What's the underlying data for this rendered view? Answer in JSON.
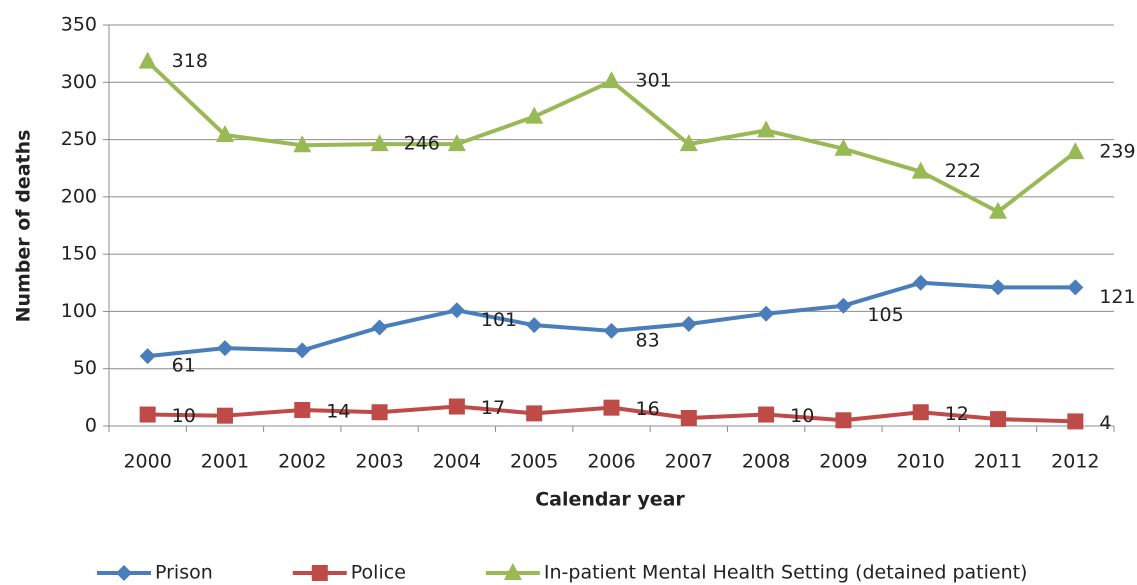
{
  "chart_data": {
    "type": "line",
    "x_label": "Calendar year",
    "y_label": "Number of deaths",
    "categories": [
      "2000",
      "2001",
      "2002",
      "2003",
      "2004",
      "2005",
      "2006",
      "2007",
      "2008",
      "2009",
      "2010",
      "2011",
      "2012"
    ],
    "ylim": [
      0,
      350
    ],
    "yticks": [
      0,
      50,
      100,
      150,
      200,
      250,
      300,
      350
    ],
    "grid": true,
    "legend": "bottom",
    "series": [
      {
        "name": "Prison",
        "color": "#4a7ebb",
        "marker": "diamond",
        "values": [
          61,
          68,
          66,
          86,
          101,
          88,
          83,
          89,
          98,
          105,
          125,
          121,
          121
        ],
        "value_labels": [
          "61",
          null,
          null,
          null,
          "101",
          null,
          "83",
          null,
          null,
          "105",
          null,
          null,
          "121"
        ]
      },
      {
        "name": "Police",
        "color": "#be4b48",
        "marker": "square",
        "values": [
          10,
          9,
          14,
          12,
          17,
          11,
          16,
          7,
          10,
          5,
          12,
          6,
          4
        ],
        "value_labels": [
          "10",
          null,
          "14",
          null,
          "17",
          null,
          "16",
          null,
          "10",
          null,
          "12",
          null,
          "4"
        ]
      },
      {
        "name": "In-patient Mental Health Setting (detained patient)",
        "color": "#98b954",
        "marker": "triangle",
        "values": [
          318,
          254,
          245,
          246,
          246,
          270,
          301,
          246,
          258,
          242,
          222,
          187,
          239
        ],
        "value_labels": [
          "318",
          null,
          null,
          "246",
          null,
          null,
          "301",
          null,
          null,
          null,
          "222",
          null,
          "239"
        ]
      }
    ]
  }
}
